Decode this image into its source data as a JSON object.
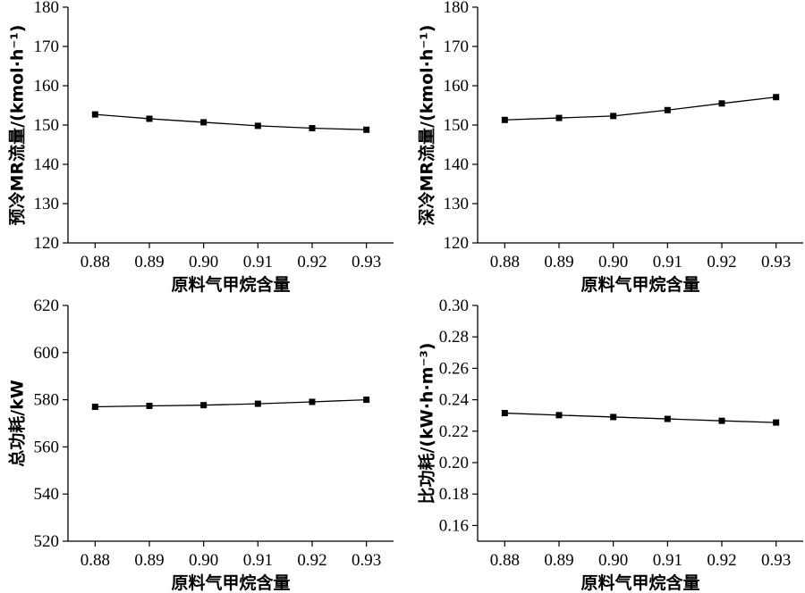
{
  "chart_data": [
    {
      "type": "line",
      "xlabel": "原料气甲烷含量",
      "ylabel": "预冷MR流量/(kmol·h⁻¹)",
      "x": [
        0.88,
        0.89,
        0.9,
        0.91,
        0.92,
        0.93
      ],
      "x_tick_labels": [
        "0.88",
        "0.89",
        "0.90",
        "0.91",
        "0.92",
        "0.93"
      ],
      "y": [
        152.7,
        151.6,
        150.7,
        149.8,
        149.2,
        148.8
      ],
      "ylim": [
        120,
        180
      ],
      "y_ticks": [
        120,
        130,
        140,
        150,
        160,
        170,
        180
      ],
      "y_tick_labels": [
        "120",
        "130",
        "140",
        "150",
        "160",
        "170",
        "180"
      ],
      "xlim": [
        0.875,
        0.935
      ],
      "grid": false
    },
    {
      "type": "line",
      "xlabel": "原料气甲烷含量",
      "ylabel": "深冷MR流量/(kmol·h⁻¹)",
      "x": [
        0.88,
        0.89,
        0.9,
        0.91,
        0.92,
        0.93
      ],
      "x_tick_labels": [
        "0.88",
        "0.89",
        "0.90",
        "0.91",
        "0.92",
        "0.93"
      ],
      "y": [
        151.3,
        151.8,
        152.3,
        153.8,
        155.5,
        157.1
      ],
      "ylim": [
        120,
        180
      ],
      "y_ticks": [
        120,
        130,
        140,
        150,
        160,
        170,
        180
      ],
      "y_tick_labels": [
        "120",
        "130",
        "140",
        "150",
        "160",
        "170",
        "180"
      ],
      "xlim": [
        0.875,
        0.935
      ],
      "grid": false
    },
    {
      "type": "line",
      "xlabel": "原料气甲烷含量",
      "ylabel": "总功耗/kW",
      "x": [
        0.88,
        0.89,
        0.9,
        0.91,
        0.92,
        0.93
      ],
      "x_tick_labels": [
        "0.88",
        "0.89",
        "0.90",
        "0.91",
        "0.92",
        "0.93"
      ],
      "y": [
        577.0,
        577.4,
        577.7,
        578.3,
        579.1,
        580.0
      ],
      "ylim": [
        520,
        620
      ],
      "y_ticks": [
        520,
        540,
        560,
        580,
        600,
        620
      ],
      "y_tick_labels": [
        "520",
        "540",
        "560",
        "580",
        "600",
        "620"
      ],
      "xlim": [
        0.875,
        0.935
      ],
      "grid": false
    },
    {
      "type": "line",
      "xlabel": "原料气甲烷含量",
      "ylabel": "比功耗/(kW·h·m⁻³)",
      "x": [
        0.88,
        0.89,
        0.9,
        0.91,
        0.92,
        0.93
      ],
      "x_tick_labels": [
        "0.88",
        "0.89",
        "0.90",
        "0.91",
        "0.92",
        "0.93"
      ],
      "y": [
        0.2315,
        0.2302,
        0.229,
        0.2278,
        0.2266,
        0.2255
      ],
      "ylim": [
        0.15,
        0.3
      ],
      "y_ticks": [
        0.16,
        0.18,
        0.2,
        0.22,
        0.24,
        0.26,
        0.28,
        0.3
      ],
      "y_tick_labels": [
        "0.16",
        "0.18",
        "0.20",
        "0.22",
        "0.24",
        "0.26",
        "0.28",
        "0.30"
      ],
      "xlim": [
        0.875,
        0.935
      ],
      "grid": false
    }
  ]
}
